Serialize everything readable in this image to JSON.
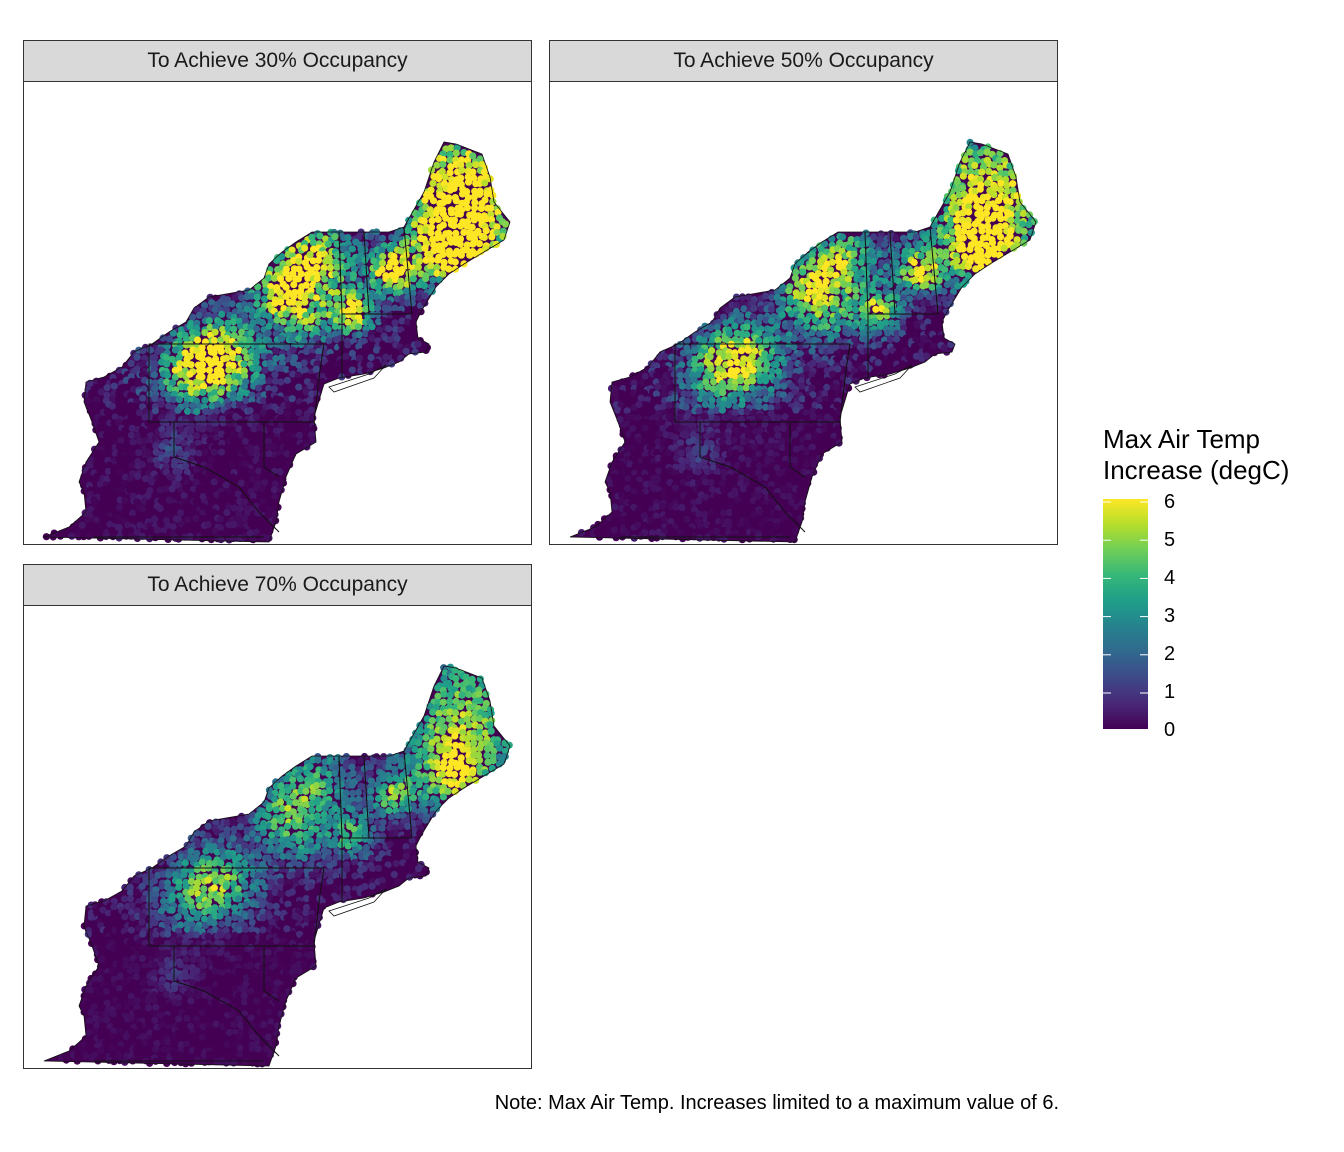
{
  "panels": [
    {
      "title": "To Achieve 30% Occupancy",
      "occupancy_pct": 30
    },
    {
      "title": "To Achieve 50% Occupancy",
      "occupancy_pct": 50
    },
    {
      "title": "To Achieve 70% Occupancy",
      "occupancy_pct": 70
    }
  ],
  "legend": {
    "title_line1": "Max Air Temp",
    "title_line2": "Increase (degC)",
    "ticks": [
      "6",
      "5",
      "4",
      "3",
      "2",
      "1",
      "0"
    ],
    "scale": "viridis",
    "range": [
      0,
      6
    ]
  },
  "colors": {
    "viridis": [
      "#440154",
      "#482878",
      "#3e4989",
      "#31688e",
      "#26828e",
      "#1f9e89",
      "#35b779",
      "#6ece58",
      "#b5de2b",
      "#fde725"
    ]
  },
  "note": "Note: Max Air Temp. Increases limited to a maximum value of 6."
}
